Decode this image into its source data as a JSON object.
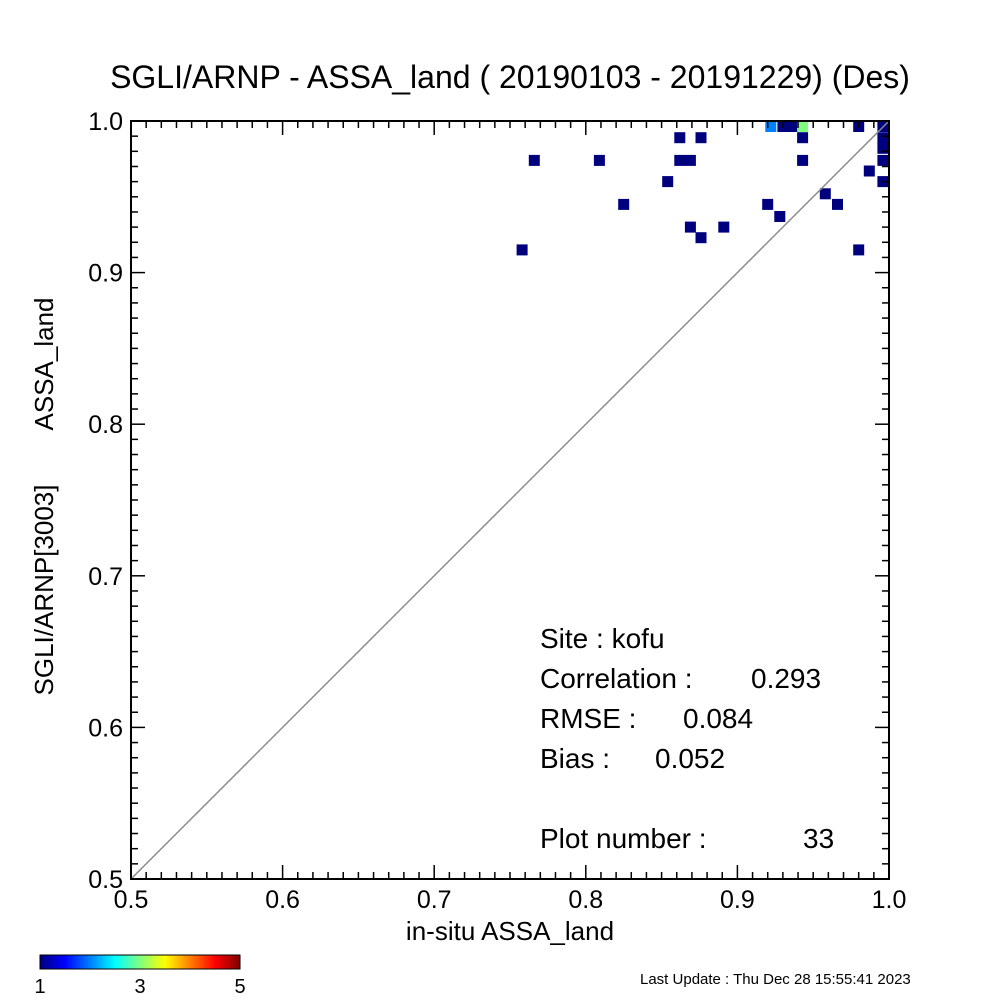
{
  "chart_data": {
    "type": "scatter",
    "title": "SGLI/ARNP - ASSA_land ( 20190103 - 20191229) (Des)",
    "xlabel": "in-situ ASSA_land",
    "ylabel_line1": "SGLI/ARNP[3003]",
    "ylabel_line2": "ASSA_land",
    "xlim": [
      0.5,
      1.0
    ],
    "ylim": [
      0.5,
      1.0
    ],
    "xticks": [
      "0.5",
      "0.6",
      "0.7",
      "0.8",
      "0.9",
      "1.0"
    ],
    "yticks": [
      "0.5",
      "0.6",
      "0.7",
      "0.8",
      "0.9",
      "1.0"
    ],
    "xtick_values": [
      0.5,
      0.6,
      0.7,
      0.8,
      0.9,
      1.0
    ],
    "ytick_values": [
      0.5,
      0.6,
      0.7,
      0.8,
      0.9,
      1.0
    ],
    "one_to_one_line": true,
    "grid": false,
    "points": [
      {
        "x": 0.758,
        "y": 0.915,
        "count": 1
      },
      {
        "x": 0.766,
        "y": 0.974,
        "count": 1
      },
      {
        "x": 0.809,
        "y": 0.974,
        "count": 1
      },
      {
        "x": 0.825,
        "y": 0.945,
        "count": 1
      },
      {
        "x": 0.854,
        "y": 0.96,
        "count": 1
      },
      {
        "x": 0.862,
        "y": 0.974,
        "count": 1
      },
      {
        "x": 0.862,
        "y": 0.989,
        "count": 1
      },
      {
        "x": 0.869,
        "y": 0.974,
        "count": 1
      },
      {
        "x": 0.869,
        "y": 0.93,
        "count": 1
      },
      {
        "x": 0.876,
        "y": 0.989,
        "count": 1
      },
      {
        "x": 0.876,
        "y": 0.923,
        "count": 1
      },
      {
        "x": 0.891,
        "y": 0.93,
        "count": 1
      },
      {
        "x": 0.92,
        "y": 0.945,
        "count": 1
      },
      {
        "x": 0.922,
        "y": 0.997,
        "count": 2
      },
      {
        "x": 0.928,
        "y": 0.937,
        "count": 1
      },
      {
        "x": 0.93,
        "y": 0.997,
        "count": 1
      },
      {
        "x": 0.936,
        "y": 0.997,
        "count": 1
      },
      {
        "x": 0.943,
        "y": 0.997,
        "count": 3
      },
      {
        "x": 0.943,
        "y": 0.989,
        "count": 1
      },
      {
        "x": 0.943,
        "y": 0.974,
        "count": 1
      },
      {
        "x": 0.958,
        "y": 0.952,
        "count": 1
      },
      {
        "x": 0.966,
        "y": 0.945,
        "count": 1
      },
      {
        "x": 0.98,
        "y": 0.997,
        "count": 1
      },
      {
        "x": 0.98,
        "y": 0.915,
        "count": 1
      },
      {
        "x": 0.987,
        "y": 0.967,
        "count": 1
      },
      {
        "x": 0.996,
        "y": 0.997,
        "count": 1
      },
      {
        "x": 0.996,
        "y": 0.989,
        "count": 1
      },
      {
        "x": 0.996,
        "y": 0.982,
        "count": 1
      },
      {
        "x": 0.996,
        "y": 0.974,
        "count": 1
      },
      {
        "x": 0.996,
        "y": 0.96,
        "count": 1
      }
    ],
    "colorbar": {
      "min_label": "1",
      "mid_label": "3",
      "max_label": "5",
      "colors": [
        "#00007f",
        "#0000ff",
        "#007fff",
        "#00ffff",
        "#7fff7f",
        "#ffff00",
        "#ff7f00",
        "#ff0000",
        "#7f0000"
      ]
    }
  },
  "stats": {
    "site": "Site : kofu",
    "correlation_label": "Correlation :",
    "correlation_value": "0.293",
    "rmse_label": "RMSE :",
    "rmse_value": "0.084",
    "bias_label": "Bias :",
    "bias_value": "0.052",
    "plot_number_label": "Plot number :",
    "plot_number_value": "33"
  },
  "footer": {
    "last_update": "Last Update : Thu Dec 28 15:55:41 2023"
  }
}
